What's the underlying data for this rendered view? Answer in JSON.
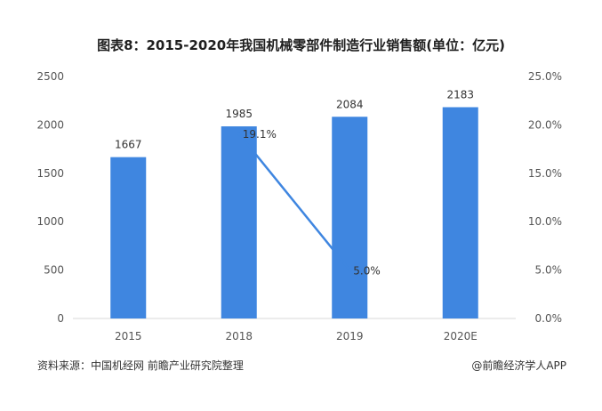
{
  "title": "图表8：2015-2020年我国机械零部件制造行业销售额(单位：亿元)",
  "source": "资料来源：中国机经网 前瞻产业研究院整理",
  "credit": "@前瞻经济学人APP",
  "colors": {
    "bar": "#3f86e0",
    "line": "#3f86e0",
    "axis_text": "#555555",
    "baseline": "#d9d9d9"
  },
  "chart_data": {
    "type": "bar",
    "categories": [
      "2015",
      "2018",
      "2019",
      "2020E"
    ],
    "series": [
      {
        "type": "bar",
        "axis": "left",
        "values": [
          1667,
          1985,
          2084,
          2183
        ]
      },
      {
        "type": "line",
        "axis": "right",
        "values": [
          null,
          19.1,
          5.0,
          null
        ],
        "labels": [
          "",
          "19.1%",
          "5.0%",
          ""
        ]
      }
    ],
    "bar_labels": [
      "1667",
      "1985",
      "2084",
      "2183"
    ],
    "left_axis": {
      "ylim": [
        0,
        2500
      ],
      "ticks": [
        "0",
        "500",
        "1000",
        "1500",
        "2000",
        "2500"
      ]
    },
    "right_axis": {
      "ylim": [
        0,
        25
      ],
      "ticks": [
        "0.0%",
        "5.0%",
        "10.0%",
        "15.0%",
        "20.0%",
        "25.0%"
      ]
    },
    "grid": false,
    "legend": "none"
  }
}
